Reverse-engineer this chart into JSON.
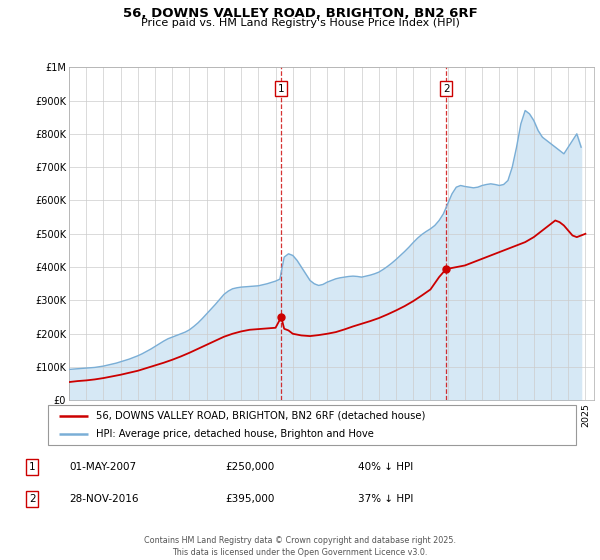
{
  "title": "56, DOWNS VALLEY ROAD, BRIGHTON, BN2 6RF",
  "subtitle": "Price paid vs. HM Land Registry's House Price Index (HPI)",
  "legend_line1": "56, DOWNS VALLEY ROAD, BRIGHTON, BN2 6RF (detached house)",
  "legend_line2": "HPI: Average price, detached house, Brighton and Hove",
  "footer": "Contains HM Land Registry data © Crown copyright and database right 2025.\nThis data is licensed under the Open Government Licence v3.0.",
  "transaction1_date": "01-MAY-2007",
  "transaction1_price": "£250,000",
  "transaction1_hpi": "40% ↓ HPI",
  "transaction2_date": "28-NOV-2016",
  "transaction2_price": "£395,000",
  "transaction2_hpi": "37% ↓ HPI",
  "vline1_x": 2007.33,
  "vline2_x": 2016.92,
  "marker1_x": 2007.33,
  "marker1_y": 250000,
  "marker2_x": 2016.92,
  "marker2_y": 395000,
  "price_color": "#cc0000",
  "hpi_color": "#7aaed6",
  "hpi_fill_color": "#d6e8f5",
  "ylim": [
    0,
    1000000
  ],
  "xlim": [
    1995,
    2025.5
  ],
  "yticks": [
    0,
    100000,
    200000,
    300000,
    400000,
    500000,
    600000,
    700000,
    800000,
    900000,
    1000000
  ],
  "ytick_labels": [
    "£0",
    "£100K",
    "£200K",
    "£300K",
    "£400K",
    "£500K",
    "£600K",
    "£700K",
    "£800K",
    "£900K",
    "£1M"
  ],
  "xticks": [
    1995,
    1996,
    1997,
    1998,
    1999,
    2000,
    2001,
    2002,
    2003,
    2004,
    2005,
    2006,
    2007,
    2008,
    2009,
    2010,
    2011,
    2012,
    2013,
    2014,
    2015,
    2016,
    2017,
    2018,
    2019,
    2020,
    2021,
    2022,
    2023,
    2024,
    2025
  ],
  "hpi_x": [
    1995.0,
    1995.25,
    1995.5,
    1995.75,
    1996.0,
    1996.25,
    1996.5,
    1996.75,
    1997.0,
    1997.25,
    1997.5,
    1997.75,
    1998.0,
    1998.25,
    1998.5,
    1998.75,
    1999.0,
    1999.25,
    1999.5,
    1999.75,
    2000.0,
    2000.25,
    2000.5,
    2000.75,
    2001.0,
    2001.25,
    2001.5,
    2001.75,
    2002.0,
    2002.25,
    2002.5,
    2002.75,
    2003.0,
    2003.25,
    2003.5,
    2003.75,
    2004.0,
    2004.25,
    2004.5,
    2004.75,
    2005.0,
    2005.25,
    2005.5,
    2005.75,
    2006.0,
    2006.25,
    2006.5,
    2006.75,
    2007.0,
    2007.25,
    2007.5,
    2007.75,
    2008.0,
    2008.25,
    2008.5,
    2008.75,
    2009.0,
    2009.25,
    2009.5,
    2009.75,
    2010.0,
    2010.25,
    2010.5,
    2010.75,
    2011.0,
    2011.25,
    2011.5,
    2011.75,
    2012.0,
    2012.25,
    2012.5,
    2012.75,
    2013.0,
    2013.25,
    2013.5,
    2013.75,
    2014.0,
    2014.25,
    2014.5,
    2014.75,
    2015.0,
    2015.25,
    2015.5,
    2015.75,
    2016.0,
    2016.25,
    2016.5,
    2016.75,
    2017.0,
    2017.25,
    2017.5,
    2017.75,
    2018.0,
    2018.25,
    2018.5,
    2018.75,
    2019.0,
    2019.25,
    2019.5,
    2019.75,
    2020.0,
    2020.25,
    2020.5,
    2020.75,
    2021.0,
    2021.25,
    2021.5,
    2021.75,
    2022.0,
    2022.25,
    2022.5,
    2022.75,
    2023.0,
    2023.25,
    2023.5,
    2023.75,
    2024.0,
    2024.25,
    2024.5,
    2024.75
  ],
  "hpi_y": [
    93000,
    94000,
    95000,
    96000,
    97000,
    98000,
    99000,
    101000,
    103000,
    106000,
    109000,
    112000,
    116000,
    120000,
    124000,
    129000,
    134000,
    140000,
    147000,
    154000,
    162000,
    170000,
    178000,
    185000,
    190000,
    195000,
    200000,
    205000,
    212000,
    222000,
    233000,
    246000,
    260000,
    274000,
    288000,
    303000,
    318000,
    328000,
    335000,
    338000,
    340000,
    341000,
    342000,
    343000,
    344000,
    347000,
    350000,
    354000,
    358000,
    364000,
    430000,
    440000,
    435000,
    420000,
    400000,
    380000,
    360000,
    350000,
    345000,
    348000,
    355000,
    360000,
    365000,
    368000,
    370000,
    372000,
    373000,
    372000,
    370000,
    373000,
    376000,
    380000,
    385000,
    393000,
    402000,
    412000,
    423000,
    435000,
    447000,
    460000,
    474000,
    487000,
    498000,
    507000,
    515000,
    525000,
    540000,
    560000,
    590000,
    620000,
    640000,
    645000,
    642000,
    640000,
    638000,
    640000,
    645000,
    648000,
    650000,
    648000,
    645000,
    648000,
    660000,
    700000,
    760000,
    830000,
    870000,
    860000,
    840000,
    810000,
    790000,
    780000,
    770000,
    760000,
    750000,
    740000,
    760000,
    780000,
    800000,
    760000
  ],
  "price_x": [
    1995.0,
    1995.5,
    1996.0,
    1996.5,
    1997.0,
    1997.5,
    1998.0,
    1998.5,
    1999.0,
    1999.5,
    2000.0,
    2000.5,
    2001.0,
    2001.5,
    2002.0,
    2002.5,
    2003.0,
    2003.5,
    2004.0,
    2004.5,
    2005.0,
    2005.5,
    2006.0,
    2006.5,
    2007.0,
    2007.33,
    2007.5,
    2007.75,
    2008.0,
    2008.5,
    2009.0,
    2009.5,
    2010.0,
    2010.5,
    2011.0,
    2011.5,
    2012.0,
    2012.5,
    2013.0,
    2013.5,
    2014.0,
    2014.5,
    2015.0,
    2015.5,
    2016.0,
    2016.5,
    2016.92,
    2017.0,
    2017.5,
    2018.0,
    2018.5,
    2019.0,
    2019.5,
    2020.0,
    2020.5,
    2021.0,
    2021.5,
    2022.0,
    2022.5,
    2023.0,
    2023.25,
    2023.5,
    2023.75,
    2024.0,
    2024.25,
    2024.5,
    2024.75,
    2025.0
  ],
  "price_y": [
    55000,
    58000,
    60000,
    63000,
    67000,
    72000,
    77000,
    83000,
    89000,
    97000,
    105000,
    113000,
    122000,
    132000,
    143000,
    155000,
    167000,
    179000,
    191000,
    200000,
    207000,
    212000,
    214000,
    216000,
    218000,
    250000,
    215000,
    210000,
    200000,
    195000,
    193000,
    196000,
    200000,
    205000,
    213000,
    222000,
    230000,
    238000,
    247000,
    258000,
    270000,
    283000,
    298000,
    315000,
    333000,
    370000,
    395000,
    395000,
    400000,
    405000,
    415000,
    425000,
    435000,
    445000,
    455000,
    465000,
    475000,
    490000,
    510000,
    530000,
    540000,
    535000,
    525000,
    510000,
    495000,
    490000,
    495000,
    500000
  ]
}
